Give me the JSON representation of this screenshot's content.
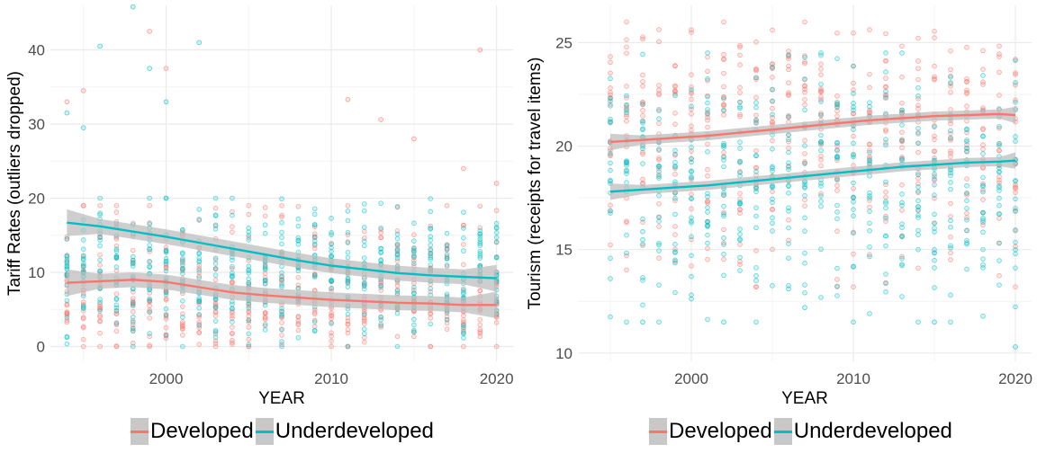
{
  "colors": {
    "developed": "#F8766D",
    "underdeveloped": "#00BFC4",
    "ribbon": "#BEBEBE",
    "grid": "#EBEBEB"
  },
  "chart_data": [
    {
      "type": "scatter",
      "xlabel": "YEAR",
      "ylabel": "Tariff Rates (outliers dropped)",
      "xlim": [
        1993,
        2021
      ],
      "ylim": [
        -2,
        46
      ],
      "xticks": [
        2000,
        2010,
        2020
      ],
      "yticks": [
        0,
        10,
        20,
        30,
        40
      ],
      "grid": true,
      "legend_position": "bottom",
      "legend": [
        "Developed",
        "Underdeveloped"
      ],
      "series": [
        {
          "name": "Developed",
          "color": "#F8766D",
          "smooth": {
            "x": [
              1994,
              1996,
              1998,
              2000,
              2002,
              2004,
              2006,
              2008,
              2010,
              2012,
              2014,
              2016,
              2018,
              2020
            ],
            "y": [
              8.6,
              8.8,
              9.0,
              8.7,
              8.0,
              7.3,
              6.9,
              6.6,
              6.3,
              6.1,
              5.9,
              5.8,
              5.6,
              5.6
            ]
          },
          "points": {
            "x_range": [
              1994,
              2020
            ],
            "spread_center": 6,
            "spread_low": 0,
            "spread_high": 19,
            "outliers": [
              [
                1994,
                33
              ],
              [
                1995,
                34.5
              ],
              [
                1999,
                42.5
              ],
              [
                2000,
                37.5
              ],
              [
                2011,
                33.3
              ],
              [
                2013,
                30.6
              ],
              [
                2015,
                28
              ],
              [
                2019,
                40
              ],
              [
                2018,
                24
              ],
              [
                2020,
                22
              ]
            ]
          }
        },
        {
          "name": "Underdeveloped",
          "color": "#00BFC4",
          "smooth": {
            "x": [
              1994,
              1996,
              1998,
              2000,
              2002,
              2004,
              2006,
              2008,
              2010,
              2012,
              2014,
              2016,
              2018,
              2020
            ],
            "y": [
              16.7,
              16.2,
              15.5,
              14.8,
              14.0,
              13.2,
              12.4,
              11.6,
              10.9,
              10.4,
              9.9,
              9.6,
              9.4,
              9.2
            ]
          },
          "points": {
            "x_range": [
              1994,
              2020
            ],
            "spread_center": 10,
            "spread_low": 0,
            "spread_high": 20,
            "outliers": [
              [
                1994,
                31.5
              ],
              [
                1996,
                40.5
              ],
              [
                1998,
                45.8
              ],
              [
                2002,
                41
              ],
              [
                1999,
                37.5
              ],
              [
                1995,
                29.5
              ],
              [
                2000,
                33
              ]
            ]
          }
        }
      ]
    },
    {
      "type": "scatter",
      "xlabel": "YEAR",
      "ylabel": "Tourism (receipts for travel items)",
      "xlim": [
        1993,
        2021
      ],
      "ylim": [
        9.6,
        26.8
      ],
      "xticks": [
        2000,
        2010,
        2020
      ],
      "yticks": [
        10,
        15,
        20,
        25
      ],
      "grid": true,
      "legend_position": "bottom",
      "legend": [
        "Developed",
        "Underdeveloped"
      ],
      "series": [
        {
          "name": "Developed",
          "color": "#F8766D",
          "smooth": {
            "x": [
              1995,
              1997,
              1999,
              2001,
              2003,
              2005,
              2007,
              2009,
              2011,
              2013,
              2015,
              2017,
              2019,
              2020
            ],
            "y": [
              20.2,
              20.3,
              20.4,
              20.5,
              20.65,
              20.8,
              20.95,
              21.1,
              21.25,
              21.35,
              21.45,
              21.5,
              21.55,
              21.5
            ]
          },
          "points": {
            "x_range": [
              1995,
              2020
            ],
            "spread_center": 21,
            "spread_low": 13.2,
            "spread_high": 26
          }
        },
        {
          "name": "Underdeveloped",
          "color": "#00BFC4",
          "smooth": {
            "x": [
              1995,
              1997,
              1999,
              2001,
              2003,
              2005,
              2007,
              2009,
              2011,
              2013,
              2015,
              2017,
              2019,
              2020
            ],
            "y": [
              17.8,
              17.9,
              18.0,
              18.1,
              18.25,
              18.4,
              18.55,
              18.7,
              18.85,
              19.0,
              19.1,
              19.2,
              19.25,
              19.3
            ]
          },
          "points": {
            "x_range": [
              1995,
              2020
            ],
            "spread_center": 18.5,
            "spread_low": 11.5,
            "spread_high": 24.5,
            "outliers": [
              [
                1997,
                11.5
              ],
              [
                2002,
                11.5
              ],
              [
                2007,
                12.2
              ],
              [
                2015,
                11.5
              ],
              [
                2020,
                10.3
              ]
            ]
          }
        }
      ]
    }
  ]
}
